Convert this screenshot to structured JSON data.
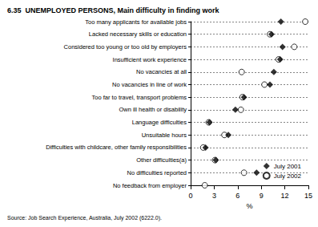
{
  "chart_data": {
    "type": "scatter",
    "orientation": "horizontal",
    "title": "6.35  UNEMPLOYED PERSONS, Main difficulty in finding work",
    "source": "Source: Job Search Experience, Australia, July 2002 (6222.0).",
    "x_label": "%",
    "categories": [
      "Too many applicants for available jobs",
      "Lacked necessary skills or education",
      "Considered too young or too old by employers",
      "Insufficient work experience",
      "No vacancies at all",
      "No vacancies in line of work",
      "Too far to travel, transport problems",
      "Own ill health or disability",
      "Language difficulties",
      "Unsuitable hours",
      "Difficulties with childcare, other family responsibilities",
      "Other difficulties(a)",
      "No difficulties reported",
      "No feedback from employer"
    ],
    "series": [
      {
        "name": "July 2001",
        "color": "#000000",
        "marker": "diamond",
        "values": [
          11.5,
          10.3,
          11.7,
          11.4,
          10.6,
          10.1,
          6.8,
          5.7,
          2.4,
          4.8,
          1.9,
          3.2,
          8.4,
          null
        ]
      },
      {
        "name": "July 2002",
        "color": "#000000",
        "marker": "circle_open",
        "values": [
          14.6,
          10.1,
          13.2,
          11.2,
          6.5,
          9.4,
          6.6,
          6.4,
          2.3,
          4.3,
          1.6,
          3.1,
          6.8,
          1.8
        ]
      }
    ],
    "xlim": [
      0,
      15
    ],
    "xticks": [
      0,
      3,
      6,
      9,
      12,
      15
    ],
    "grid": true,
    "legend": "bottom-right"
  }
}
